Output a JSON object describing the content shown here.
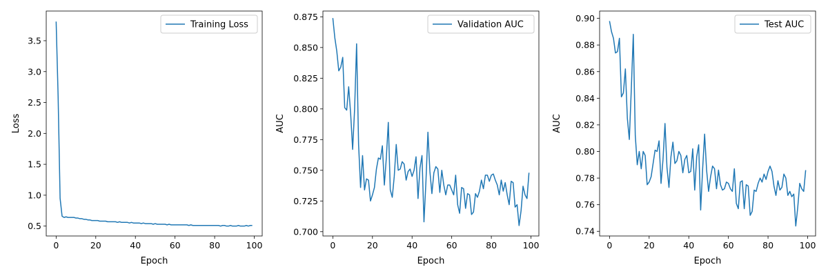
{
  "colors": {
    "line": "#1f77b4",
    "axes": "#000000",
    "legend_border": "#cccccc",
    "background": "#ffffff"
  },
  "chart_data": [
    {
      "type": "line",
      "xlabel": "Epoch",
      "ylabel": "Loss",
      "legend": "Training Loss",
      "legend_position": "top-right",
      "grid": false,
      "xlim": [
        -5,
        104
      ],
      "ylim": [
        0.34,
        3.98
      ],
      "xticks": [
        0,
        20,
        40,
        60,
        80,
        100
      ],
      "xtick_labels": [
        "0",
        "20",
        "40",
        "60",
        "80",
        "100"
      ],
      "yticks": [
        0.5,
        1.0,
        1.5,
        2.0,
        2.5,
        3.0,
        3.5
      ],
      "ytick_labels": [
        "0.5",
        "1.0",
        "1.5",
        "2.0",
        "2.5",
        "3.0",
        "3.5"
      ],
      "series": [
        {
          "name": "Training Loss",
          "y": [
            3.81,
            2.6,
            0.95,
            0.66,
            0.64,
            0.65,
            0.64,
            0.64,
            0.64,
            0.64,
            0.63,
            0.63,
            0.62,
            0.62,
            0.61,
            0.61,
            0.6,
            0.6,
            0.59,
            0.59,
            0.59,
            0.59,
            0.58,
            0.58,
            0.58,
            0.58,
            0.57,
            0.57,
            0.57,
            0.57,
            0.57,
            0.56,
            0.57,
            0.56,
            0.56,
            0.56,
            0.56,
            0.55,
            0.56,
            0.55,
            0.55,
            0.55,
            0.55,
            0.54,
            0.55,
            0.54,
            0.54,
            0.54,
            0.54,
            0.53,
            0.54,
            0.53,
            0.53,
            0.53,
            0.53,
            0.53,
            0.52,
            0.53,
            0.52,
            0.52,
            0.52,
            0.52,
            0.52,
            0.52,
            0.52,
            0.52,
            0.52,
            0.51,
            0.52,
            0.51,
            0.51,
            0.51,
            0.51,
            0.51,
            0.51,
            0.51,
            0.51,
            0.51,
            0.51,
            0.51,
            0.51,
            0.51,
            0.51,
            0.5,
            0.51,
            0.51,
            0.5,
            0.5,
            0.51,
            0.5,
            0.5,
            0.5,
            0.51,
            0.5,
            0.5,
            0.5,
            0.51,
            0.5,
            0.51,
            0.51
          ]
        }
      ]
    },
    {
      "type": "line",
      "xlabel": "Epoch",
      "ylabel": "AUC",
      "legend": "Validation AUC",
      "legend_position": "top-right",
      "grid": false,
      "xlim": [
        -5,
        104
      ],
      "ylim": [
        0.6965,
        0.8797
      ],
      "xticks": [
        0,
        20,
        40,
        60,
        80,
        100
      ],
      "xtick_labels": [
        "0",
        "20",
        "40",
        "60",
        "80",
        "100"
      ],
      "yticks": [
        0.7,
        0.725,
        0.75,
        0.775,
        0.8,
        0.825,
        0.85,
        0.875
      ],
      "ytick_labels": [
        "0.700",
        "0.725",
        "0.750",
        "0.775",
        "0.800",
        "0.825",
        "0.850",
        "0.875"
      ],
      "series": [
        {
          "name": "Validation AUC",
          "y": [
            0.874,
            0.858,
            0.847,
            0.831,
            0.834,
            0.842,
            0.801,
            0.799,
            0.818,
            0.796,
            0.767,
            0.8,
            0.853,
            0.771,
            0.736,
            0.762,
            0.734,
            0.743,
            0.742,
            0.725,
            0.73,
            0.736,
            0.751,
            0.76,
            0.759,
            0.77,
            0.738,
            0.76,
            0.789,
            0.734,
            0.728,
            0.745,
            0.771,
            0.75,
            0.751,
            0.757,
            0.755,
            0.742,
            0.749,
            0.751,
            0.745,
            0.75,
            0.761,
            0.727,
            0.752,
            0.762,
            0.708,
            0.741,
            0.781,
            0.749,
            0.731,
            0.748,
            0.753,
            0.751,
            0.732,
            0.75,
            0.738,
            0.73,
            0.738,
            0.738,
            0.734,
            0.73,
            0.746,
            0.722,
            0.715,
            0.736,
            0.735,
            0.719,
            0.731,
            0.73,
            0.714,
            0.716,
            0.731,
            0.728,
            0.733,
            0.742,
            0.735,
            0.746,
            0.746,
            0.741,
            0.746,
            0.747,
            0.742,
            0.738,
            0.73,
            0.742,
            0.733,
            0.74,
            0.73,
            0.722,
            0.741,
            0.74,
            0.72,
            0.722,
            0.705,
            0.717,
            0.737,
            0.73,
            0.727,
            0.748
          ]
        }
      ]
    },
    {
      "type": "line",
      "xlabel": "Epoch",
      "ylabel": "AUC",
      "legend": "Test AUC",
      "legend_position": "top-right",
      "grid": false,
      "xlim": [
        -5,
        104
      ],
      "ylim": [
        0.7365,
        0.9055
      ],
      "xticks": [
        0,
        20,
        40,
        60,
        80,
        100
      ],
      "xtick_labels": [
        "0",
        "20",
        "40",
        "60",
        "80",
        "100"
      ],
      "yticks": [
        0.74,
        0.76,
        0.78,
        0.8,
        0.82,
        0.84,
        0.86,
        0.88,
        0.9
      ],
      "ytick_labels": [
        "0.74",
        "0.76",
        "0.78",
        "0.80",
        "0.82",
        "0.84",
        "0.86",
        "0.88",
        "0.90"
      ],
      "series": [
        {
          "name": "Test AUC",
          "y": [
            0.898,
            0.89,
            0.885,
            0.874,
            0.875,
            0.885,
            0.841,
            0.844,
            0.862,
            0.825,
            0.809,
            0.847,
            0.888,
            0.812,
            0.79,
            0.8,
            0.787,
            0.8,
            0.797,
            0.775,
            0.777,
            0.781,
            0.791,
            0.801,
            0.8,
            0.808,
            0.776,
            0.794,
            0.821,
            0.788,
            0.773,
            0.796,
            0.807,
            0.791,
            0.793,
            0.8,
            0.797,
            0.784,
            0.794,
            0.797,
            0.784,
            0.785,
            0.802,
            0.771,
            0.796,
            0.805,
            0.756,
            0.787,
            0.813,
            0.786,
            0.77,
            0.781,
            0.789,
            0.787,
            0.772,
            0.786,
            0.775,
            0.771,
            0.772,
            0.777,
            0.776,
            0.772,
            0.77,
            0.787,
            0.761,
            0.757,
            0.777,
            0.778,
            0.757,
            0.775,
            0.774,
            0.752,
            0.755,
            0.771,
            0.77,
            0.776,
            0.78,
            0.777,
            0.783,
            0.779,
            0.785,
            0.789,
            0.785,
            0.774,
            0.767,
            0.778,
            0.771,
            0.773,
            0.783,
            0.78,
            0.767,
            0.77,
            0.766,
            0.768,
            0.744,
            0.758,
            0.776,
            0.772,
            0.77,
            0.786
          ]
        }
      ]
    }
  ]
}
